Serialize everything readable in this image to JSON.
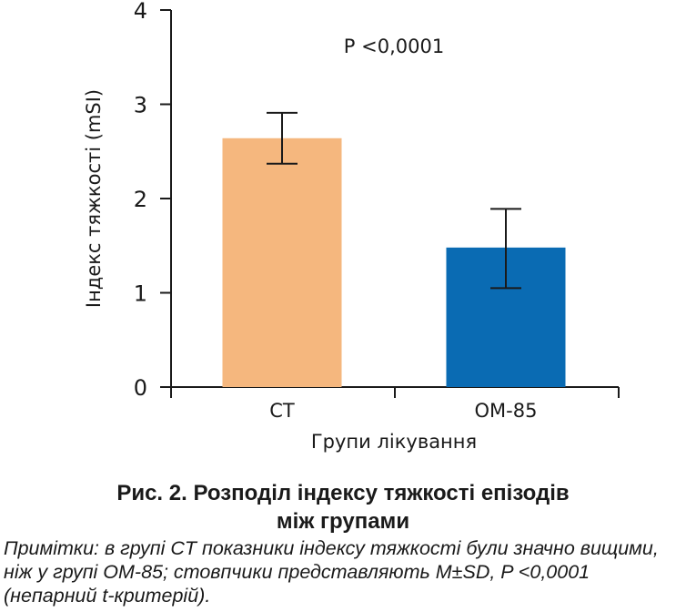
{
  "chart_data": {
    "type": "bar",
    "categories": [
      "CT",
      "OM-85"
    ],
    "values": [
      2.64,
      1.48
    ],
    "error_upper": [
      2.91,
      1.89
    ],
    "error_lower": [
      2.37,
      1.05
    ],
    "colors": [
      "#F5B77E",
      "#0A6BB3"
    ],
    "xlabel": "Групи лікування",
    "ylabel": "Індекс тяжкості (mSI)",
    "ylim": [
      0,
      4
    ],
    "yticks": [
      "0",
      "1",
      "2",
      "3",
      "4"
    ],
    "annotation": "P <0,0001",
    "grid": false
  },
  "caption": {
    "title_line1": "Рис. 2. Розподіл індексу тяжкості епізодів",
    "title_line2": "між групами",
    "note": "Примітки: в групі CT показники індексу тяжкості були значно вищими, ніж у групі OM-85; стовпчики представляють M±SD, P <0,0001 (непарний t-критерій)."
  }
}
